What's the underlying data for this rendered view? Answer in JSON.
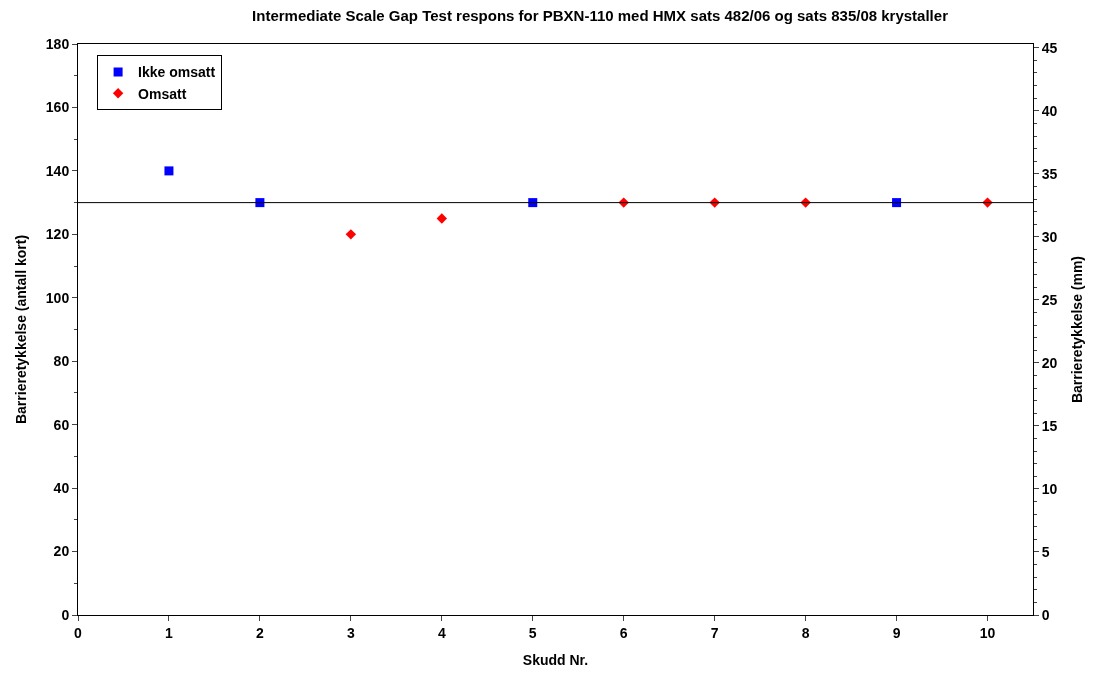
{
  "chart_data": {
    "type": "scatter",
    "title": "Intermediate Scale Gap Test respons for PBXN-110 med HMX sats 482/06 og sats 835/08 krystaller",
    "xlabel": "Skudd Nr.",
    "ylabel": "Barrieretykkelse (antall kort)",
    "y2label": "Barrieretykkelse (mm)",
    "series": [
      {
        "name": "Ikke omsatt",
        "color": "#0000ff",
        "marker": "square",
        "x": [
          1,
          2,
          5,
          9
        ],
        "values": [
          140,
          130,
          130,
          130
        ]
      },
      {
        "name": "Omsatt",
        "color": "#ff0000",
        "marker": "diamond",
        "x": [
          3,
          4,
          6,
          7,
          8,
          10
        ],
        "values": [
          120,
          125,
          130,
          130,
          130,
          130
        ]
      }
    ],
    "xlim": [
      0,
      10.5
    ],
    "xticks": [
      0,
      1,
      2,
      3,
      4,
      5,
      6,
      7,
      8,
      9,
      10
    ],
    "ylim": [
      0,
      180
    ],
    "yticks": [
      0,
      20,
      40,
      60,
      80,
      100,
      120,
      140,
      160,
      180
    ],
    "y2lim": [
      0,
      45.3
    ],
    "y2ticks": [
      0,
      5,
      10,
      15,
      20,
      25,
      30,
      35,
      40,
      45
    ],
    "ref_lines": [
      {
        "axis": "y",
        "value": 130,
        "color": "#000000"
      }
    ],
    "legend": "top left"
  }
}
